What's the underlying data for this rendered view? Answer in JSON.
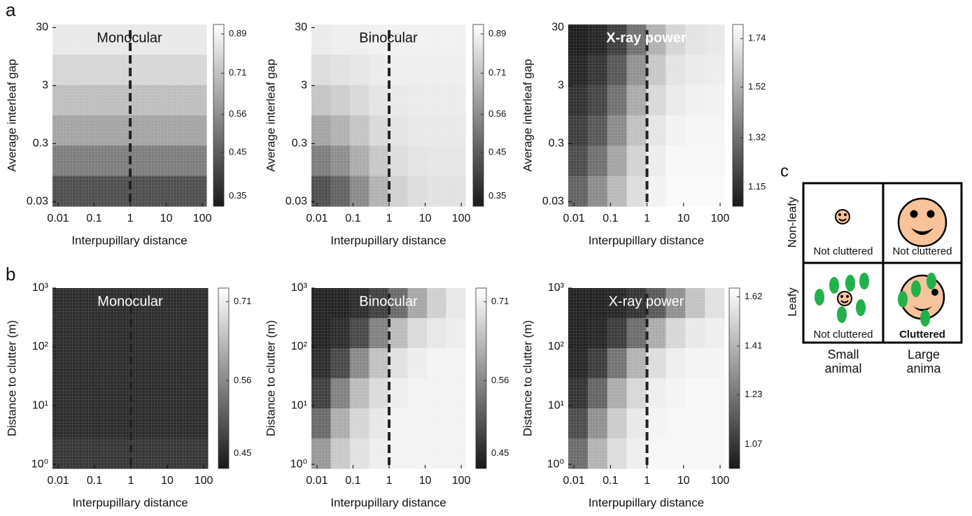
{
  "panel_labels": [
    "a",
    "b",
    "c"
  ],
  "chart_data": [
    {
      "type": "heatmap",
      "title": "Monocular",
      "title_color": "#111",
      "title_bold": false,
      "xlabel": "Interpupillary distance",
      "ylabel": "Average interleaf gap",
      "xlog": true,
      "ylog": true,
      "xlim": [
        0.007,
        130
      ],
      "ylim": [
        0.025,
        34
      ],
      "xticks": [
        0.01,
        0.1,
        1,
        10,
        100
      ],
      "yticks": [
        0.03,
        0.3,
        3,
        30
      ],
      "vline": 1,
      "clog": true,
      "clim": [
        0.33,
        0.94
      ],
      "cticks": [
        0.35,
        0.45,
        0.56,
        0.71,
        0.89
      ],
      "z": [
        [
          0.85,
          0.85,
          0.85,
          0.85,
          0.85,
          0.85,
          0.85,
          0.85
        ],
        [
          0.78,
          0.78,
          0.78,
          0.78,
          0.78,
          0.78,
          0.78,
          0.78
        ],
        [
          0.7,
          0.7,
          0.7,
          0.7,
          0.7,
          0.7,
          0.7,
          0.7
        ],
        [
          0.62,
          0.62,
          0.62,
          0.62,
          0.62,
          0.62,
          0.62,
          0.62
        ],
        [
          0.52,
          0.52,
          0.52,
          0.52,
          0.52,
          0.52,
          0.52,
          0.52
        ],
        [
          0.42,
          0.42,
          0.42,
          0.42,
          0.42,
          0.42,
          0.42,
          0.42
        ]
      ]
    },
    {
      "type": "heatmap",
      "title": "Binocular",
      "title_color": "#111",
      "title_bold": false,
      "xlabel": "Interpupillary distance",
      "ylabel": "Average interleaf gap",
      "xlog": true,
      "ylog": true,
      "xlim": [
        0.007,
        130
      ],
      "ylim": [
        0.025,
        34
      ],
      "xticks": [
        0.01,
        0.1,
        1,
        10,
        100
      ],
      "yticks": [
        0.03,
        0.3,
        3,
        30
      ],
      "vline": 1,
      "clog": true,
      "clim": [
        0.33,
        0.94
      ],
      "cticks": [
        0.35,
        0.45,
        0.56,
        0.71,
        0.89
      ],
      "z": [
        [
          0.86,
          0.87,
          0.87,
          0.88,
          0.88,
          0.88,
          0.88,
          0.88
        ],
        [
          0.8,
          0.82,
          0.84,
          0.86,
          0.87,
          0.87,
          0.87,
          0.87
        ],
        [
          0.72,
          0.75,
          0.79,
          0.83,
          0.85,
          0.86,
          0.86,
          0.86
        ],
        [
          0.62,
          0.66,
          0.72,
          0.79,
          0.83,
          0.85,
          0.85,
          0.85
        ],
        [
          0.52,
          0.56,
          0.64,
          0.73,
          0.8,
          0.83,
          0.84,
          0.84
        ],
        [
          0.42,
          0.46,
          0.55,
          0.66,
          0.76,
          0.8,
          0.82,
          0.82
        ]
      ]
    },
    {
      "type": "heatmap",
      "title": "X-ray power",
      "title_color": "#fff",
      "title_bold": true,
      "xlabel": "Interpupillary distance",
      "ylabel": "Average interleaf gap",
      "xlog": true,
      "ylog": true,
      "xlim": [
        0.007,
        130
      ],
      "ylim": [
        0.025,
        34
      ],
      "xticks": [
        0.01,
        0.1,
        1,
        10,
        100
      ],
      "yticks": [
        0.03,
        0.3,
        3,
        30
      ],
      "vline": 1,
      "clog": true,
      "clim": [
        1.09,
        1.81
      ],
      "cticks": [
        1.15,
        1.32,
        1.52,
        1.74
      ],
      "z": [
        [
          1.1,
          1.12,
          1.18,
          1.32,
          1.52,
          1.65,
          1.7,
          1.72
        ],
        [
          1.12,
          1.16,
          1.25,
          1.42,
          1.6,
          1.7,
          1.73,
          1.74
        ],
        [
          1.15,
          1.2,
          1.32,
          1.5,
          1.66,
          1.73,
          1.75,
          1.76
        ],
        [
          1.18,
          1.25,
          1.4,
          1.58,
          1.71,
          1.76,
          1.77,
          1.77
        ],
        [
          1.22,
          1.32,
          1.48,
          1.64,
          1.74,
          1.78,
          1.78,
          1.78
        ],
        [
          1.28,
          1.4,
          1.55,
          1.68,
          1.76,
          1.79,
          1.79,
          1.79
        ]
      ]
    },
    {
      "type": "heatmap",
      "title": "Monocular",
      "title_color": "#fff",
      "title_bold": false,
      "xlabel": "Interpupillary distance",
      "ylabel": "Distance to clutter (m)",
      "xlog": true,
      "ylog": true,
      "xlim": [
        0.007,
        130
      ],
      "ylim": [
        0.85,
        1000
      ],
      "xticks": [
        0.01,
        0.1,
        1,
        10,
        100
      ],
      "yticks": [
        {
          "value": 1,
          "label": "10⁰"
        },
        {
          "value": 10,
          "label": "10¹"
        },
        {
          "value": 100,
          "label": "10²"
        },
        {
          "value": 1000,
          "label": "10³"
        }
      ],
      "vline": 1,
      "clog": true,
      "clim": [
        0.43,
        0.74
      ],
      "cticks": [
        0.45,
        0.56,
        0.71
      ],
      "z": [
        [
          0.45,
          0.45,
          0.45,
          0.45,
          0.45,
          0.45,
          0.45,
          0.45
        ],
        [
          0.45,
          0.45,
          0.45,
          0.45,
          0.45,
          0.45,
          0.45,
          0.45
        ],
        [
          0.45,
          0.45,
          0.45,
          0.45,
          0.45,
          0.45,
          0.45,
          0.45
        ],
        [
          0.45,
          0.45,
          0.45,
          0.45,
          0.45,
          0.45,
          0.45,
          0.45
        ],
        [
          0.45,
          0.45,
          0.45,
          0.45,
          0.45,
          0.45,
          0.45,
          0.45
        ],
        [
          0.46,
          0.46,
          0.46,
          0.46,
          0.46,
          0.46,
          0.46,
          0.46
        ]
      ]
    },
    {
      "type": "heatmap",
      "title": "Binocular",
      "title_color": "#fff",
      "title_bold": false,
      "xlabel": "Interpupillary distance",
      "ylabel": "Distance to clutter (m)",
      "xlog": true,
      "ylog": true,
      "xlim": [
        0.007,
        130
      ],
      "ylim": [
        0.85,
        1000
      ],
      "xticks": [
        0.01,
        0.1,
        1,
        10,
        100
      ],
      "yticks": [
        {
          "value": 1,
          "label": "10⁰"
        },
        {
          "value": 10,
          "label": "10¹"
        },
        {
          "value": 100,
          "label": "10²"
        },
        {
          "value": 1000,
          "label": "10³"
        }
      ],
      "vline": 1,
      "clog": true,
      "clim": [
        0.43,
        0.74
      ],
      "cticks": [
        0.45,
        0.56,
        0.71
      ],
      "z": [
        [
          0.44,
          0.44,
          0.45,
          0.47,
          0.52,
          0.6,
          0.66,
          0.7
        ],
        [
          0.44,
          0.45,
          0.48,
          0.55,
          0.63,
          0.68,
          0.7,
          0.71
        ],
        [
          0.45,
          0.48,
          0.56,
          0.64,
          0.69,
          0.71,
          0.72,
          0.72
        ],
        [
          0.47,
          0.55,
          0.63,
          0.68,
          0.71,
          0.72,
          0.72,
          0.72
        ],
        [
          0.52,
          0.61,
          0.67,
          0.7,
          0.72,
          0.72,
          0.72,
          0.72
        ],
        [
          0.58,
          0.65,
          0.69,
          0.71,
          0.72,
          0.72,
          0.72,
          0.72
        ]
      ]
    },
    {
      "type": "heatmap",
      "title": "X-ray power",
      "title_color": "#fff",
      "title_bold": false,
      "xlabel": "Interpupillary distance",
      "ylabel": "Distance to clutter (m)",
      "xlog": true,
      "ylog": true,
      "xlim": [
        0.007,
        130
      ],
      "ylim": [
        0.85,
        1000
      ],
      "xticks": [
        0.01,
        0.1,
        1,
        10,
        100
      ],
      "yticks": [
        {
          "value": 1,
          "label": "10⁰"
        },
        {
          "value": 10,
          "label": "10¹"
        },
        {
          "value": 100,
          "label": "10²"
        },
        {
          "value": 1000,
          "label": "10³"
        }
      ],
      "vline": 1,
      "clog": true,
      "clim": [
        1.0,
        1.66
      ],
      "cticks": [
        1.07,
        1.23,
        1.41,
        1.62
      ],
      "z": [
        [
          1.02,
          1.02,
          1.03,
          1.06,
          1.15,
          1.3,
          1.45,
          1.55
        ],
        [
          1.02,
          1.03,
          1.08,
          1.2,
          1.38,
          1.52,
          1.58,
          1.6
        ],
        [
          1.03,
          1.08,
          1.22,
          1.4,
          1.54,
          1.6,
          1.62,
          1.62
        ],
        [
          1.06,
          1.18,
          1.38,
          1.52,
          1.6,
          1.62,
          1.63,
          1.63
        ],
        [
          1.12,
          1.3,
          1.48,
          1.58,
          1.62,
          1.63,
          1.63,
          1.63
        ],
        [
          1.2,
          1.4,
          1.54,
          1.6,
          1.63,
          1.63,
          1.63,
          1.63
        ]
      ]
    }
  ],
  "diagram": {
    "rows": [
      "Non-leafy",
      "Leafy"
    ],
    "columns": [
      [
        "Small",
        "animal"
      ],
      [
        "Large",
        "anima"
      ]
    ],
    "cells": [
      [
        "Not cluttered",
        "Not cluttered"
      ],
      [
        "Not cluttered",
        "Cluttered"
      ]
    ]
  }
}
